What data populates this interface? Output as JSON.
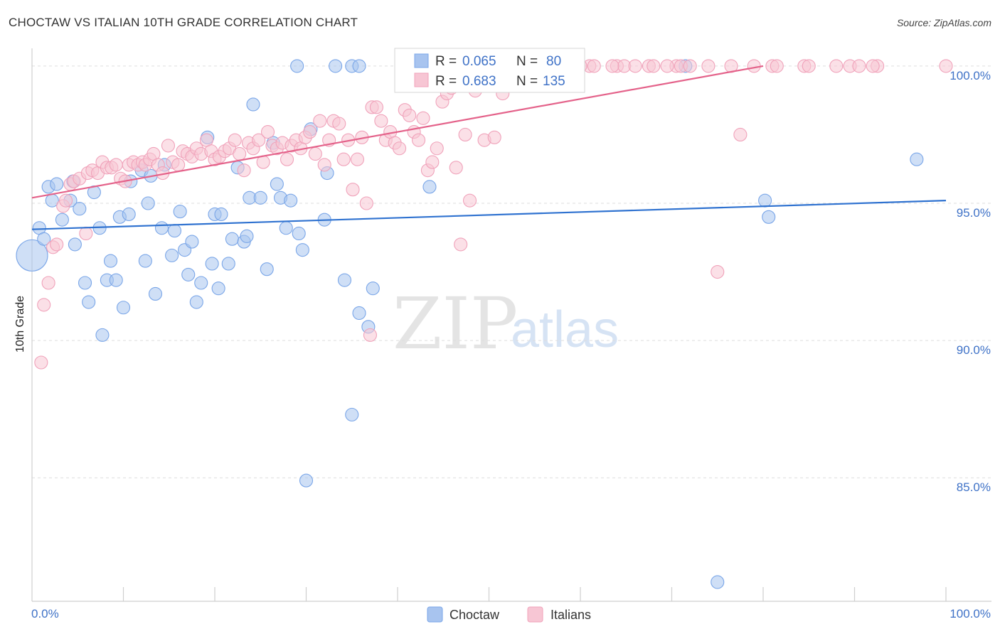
{
  "chart_data": {
    "type": "scatter",
    "title": "CHOCTAW VS ITALIAN 10TH GRADE CORRELATION CHART",
    "source": "Source: ZipAtlas.com",
    "xlabel": "",
    "ylabel": "10th Grade",
    "xlim": [
      0,
      100
    ],
    "ylim": [
      80.5,
      100.8
    ],
    "x_tick_labels": [
      "0.0%",
      "100.0%"
    ],
    "y_ticks": [
      85,
      90,
      95,
      100
    ],
    "y_tick_labels": [
      "85.0%",
      "90.0%",
      "95.0%",
      "100.0%"
    ],
    "watermark": [
      "ZIP",
      "atlas"
    ],
    "legend": {
      "r_label": "R =",
      "n_label": "N =",
      "entries": [
        {
          "name": "Choctaw",
          "r": "0.065",
          "n": "80"
        },
        {
          "name": "Italians",
          "r": "0.683",
          "n": "135"
        }
      ]
    },
    "series": [
      {
        "name": "Choctaw",
        "color": "#7aa6e8",
        "fill": "#a8c4ef",
        "line_color": "#2f72d0",
        "trend": [
          [
            0,
            94.05
          ],
          [
            100,
            95.1
          ]
        ],
        "points": [
          [
            0,
            93.1
          ],
          [
            0.8,
            94.1
          ],
          [
            1.3,
            93.7
          ],
          [
            1.8,
            95.6
          ],
          [
            2.2,
            95.1
          ],
          [
            2.7,
            95.7
          ],
          [
            3.3,
            94.4
          ],
          [
            4.2,
            95.1
          ],
          [
            4.5,
            95.8
          ],
          [
            4.7,
            93.5
          ],
          [
            5.2,
            94.8
          ],
          [
            5.8,
            92.1
          ],
          [
            6.2,
            91.4
          ],
          [
            6.8,
            95.4
          ],
          [
            7.4,
            94.1
          ],
          [
            7.7,
            90.2
          ],
          [
            8.2,
            92.2
          ],
          [
            8.6,
            92.9
          ],
          [
            9.2,
            92.2
          ],
          [
            9.6,
            94.5
          ],
          [
            10.0,
            91.2
          ],
          [
            10.6,
            94.6
          ],
          [
            10.8,
            95.8
          ],
          [
            12.0,
            96.2
          ],
          [
            12.4,
            92.9
          ],
          [
            12.7,
            95.0
          ],
          [
            13.0,
            96.0
          ],
          [
            13.5,
            91.7
          ],
          [
            14.2,
            94.1
          ],
          [
            14.5,
            96.4
          ],
          [
            15.3,
            93.1
          ],
          [
            15.6,
            94.0
          ],
          [
            16.2,
            94.7
          ],
          [
            16.7,
            93.3
          ],
          [
            17.1,
            92.4
          ],
          [
            17.5,
            93.6
          ],
          [
            18.0,
            91.4
          ],
          [
            18.5,
            92.1
          ],
          [
            19.2,
            97.4
          ],
          [
            19.7,
            92.8
          ],
          [
            20.0,
            94.6
          ],
          [
            20.4,
            91.9
          ],
          [
            20.7,
            94.6
          ],
          [
            21.5,
            92.8
          ],
          [
            21.9,
            93.7
          ],
          [
            22.5,
            96.3
          ],
          [
            23.2,
            93.6
          ],
          [
            23.5,
            93.8
          ],
          [
            23.8,
            95.2
          ],
          [
            24.2,
            98.6
          ],
          [
            25.0,
            95.2
          ],
          [
            25.7,
            92.6
          ],
          [
            26.4,
            97.2
          ],
          [
            26.8,
            95.7
          ],
          [
            27.2,
            95.2
          ],
          [
            27.8,
            94.1
          ],
          [
            28.3,
            95.1
          ],
          [
            29.2,
            93.9
          ],
          [
            29.6,
            93.3
          ],
          [
            30.0,
            84.9
          ],
          [
            30.5,
            97.7
          ],
          [
            32.0,
            94.4
          ],
          [
            32.3,
            96.1
          ],
          [
            34.2,
            92.2
          ],
          [
            35.0,
            87.3
          ],
          [
            35.8,
            91.0
          ],
          [
            36.8,
            90.5
          ],
          [
            37.3,
            91.9
          ],
          [
            29.0,
            100.0
          ],
          [
            33.2,
            100.0
          ],
          [
            35.0,
            100.0
          ],
          [
            35.8,
            100.0
          ],
          [
            43.5,
            95.6
          ],
          [
            43.5,
            100.0
          ],
          [
            46.2,
            100.0
          ],
          [
            71.5,
            100.0
          ],
          [
            75.0,
            81.2
          ],
          [
            80.2,
            95.1
          ],
          [
            80.6,
            94.5
          ],
          [
            96.8,
            96.6
          ]
        ]
      },
      {
        "name": "Italians",
        "color": "#f0a2ba",
        "fill": "#f7c6d4",
        "line_color": "#e4628a",
        "trend": [
          [
            0,
            95.2
          ],
          [
            80,
            100.0
          ]
        ],
        "points": [
          [
            1.0,
            89.2
          ],
          [
            1.3,
            91.3
          ],
          [
            1.8,
            92.1
          ],
          [
            2.3,
            93.4
          ],
          [
            2.7,
            93.5
          ],
          [
            3.4,
            94.9
          ],
          [
            3.7,
            95.1
          ],
          [
            4.2,
            95.7
          ],
          [
            4.6,
            95.8
          ],
          [
            5.2,
            95.9
          ],
          [
            5.9,
            93.9
          ],
          [
            6.1,
            96.1
          ],
          [
            6.6,
            96.2
          ],
          [
            7.2,
            96.1
          ],
          [
            7.7,
            96.5
          ],
          [
            8.2,
            96.3
          ],
          [
            8.7,
            96.3
          ],
          [
            9.2,
            96.4
          ],
          [
            9.7,
            95.9
          ],
          [
            10.2,
            95.8
          ],
          [
            10.6,
            96.4
          ],
          [
            11.1,
            96.5
          ],
          [
            11.6,
            96.4
          ],
          [
            12.1,
            96.5
          ],
          [
            12.4,
            96.4
          ],
          [
            12.9,
            96.6
          ],
          [
            13.3,
            96.8
          ],
          [
            13.8,
            96.4
          ],
          [
            14.3,
            96.1
          ],
          [
            14.9,
            97.1
          ],
          [
            15.4,
            96.5
          ],
          [
            16.0,
            96.4
          ],
          [
            16.5,
            96.9
          ],
          [
            17.0,
            96.8
          ],
          [
            17.5,
            96.7
          ],
          [
            18.0,
            97.0
          ],
          [
            18.5,
            96.8
          ],
          [
            19.1,
            97.3
          ],
          [
            19.6,
            96.9
          ],
          [
            20.0,
            96.6
          ],
          [
            20.5,
            96.7
          ],
          [
            21.1,
            96.9
          ],
          [
            21.6,
            97.0
          ],
          [
            22.2,
            97.3
          ],
          [
            22.7,
            96.8
          ],
          [
            23.2,
            96.2
          ],
          [
            23.7,
            97.2
          ],
          [
            24.2,
            97.0
          ],
          [
            24.8,
            97.3
          ],
          [
            25.3,
            96.5
          ],
          [
            25.8,
            97.6
          ],
          [
            26.3,
            97.1
          ],
          [
            26.8,
            97.0
          ],
          [
            27.4,
            97.2
          ],
          [
            27.9,
            96.6
          ],
          [
            28.4,
            97.1
          ],
          [
            28.9,
            97.3
          ],
          [
            29.4,
            97.0
          ],
          [
            29.9,
            97.4
          ],
          [
            30.4,
            97.6
          ],
          [
            31.0,
            96.8
          ],
          [
            31.5,
            98.0
          ],
          [
            32.0,
            96.4
          ],
          [
            32.5,
            97.3
          ],
          [
            33.0,
            98.0
          ],
          [
            33.6,
            97.9
          ],
          [
            34.1,
            96.6
          ],
          [
            34.6,
            97.3
          ],
          [
            35.1,
            95.5
          ],
          [
            35.6,
            96.6
          ],
          [
            36.1,
            97.4
          ],
          [
            36.6,
            95.0
          ],
          [
            37.2,
            98.5
          ],
          [
            37.7,
            98.5
          ],
          [
            38.2,
            98.0
          ],
          [
            38.7,
            97.3
          ],
          [
            39.2,
            97.6
          ],
          [
            39.7,
            97.2
          ],
          [
            40.2,
            97.0
          ],
          [
            40.8,
            98.4
          ],
          [
            41.3,
            98.2
          ],
          [
            41.8,
            97.6
          ],
          [
            42.3,
            97.3
          ],
          [
            42.8,
            98.1
          ],
          [
            43.3,
            96.2
          ],
          [
            43.8,
            96.5
          ],
          [
            44.3,
            97.0
          ],
          [
            44.9,
            98.7
          ],
          [
            45.4,
            99.0
          ],
          [
            45.9,
            99.2
          ],
          [
            46.4,
            96.3
          ],
          [
            46.9,
            93.5
          ],
          [
            47.4,
            97.5
          ],
          [
            47.9,
            95.1
          ],
          [
            48.5,
            99.1
          ],
          [
            49.5,
            97.3
          ],
          [
            50.6,
            97.4
          ],
          [
            51.5,
            99.0
          ],
          [
            52.5,
            100.0
          ],
          [
            53.5,
            100.0
          ],
          [
            54.6,
            100.0
          ],
          [
            55.5,
            100.0
          ],
          [
            57.0,
            100.0
          ],
          [
            58.0,
            100.0
          ],
          [
            61.0,
            100.0
          ],
          [
            61.5,
            100.0
          ],
          [
            64.0,
            100.0
          ],
          [
            64.8,
            100.0
          ],
          [
            67.5,
            100.0
          ],
          [
            68.0,
            100.0
          ],
          [
            70.5,
            100.0
          ],
          [
            71.0,
            100.0
          ],
          [
            72.0,
            100.0
          ],
          [
            75.0,
            92.5
          ],
          [
            76.5,
            100.0
          ],
          [
            77.5,
            97.5
          ],
          [
            79.0,
            100.0
          ],
          [
            81.0,
            100.0
          ],
          [
            81.5,
            100.0
          ],
          [
            84.5,
            100.0
          ],
          [
            88.0,
            100.0
          ],
          [
            89.5,
            100.0
          ],
          [
            90.5,
            100.0
          ],
          [
            92.5,
            100.0
          ],
          [
            100.0,
            100.0
          ],
          [
            60.0,
            100.0
          ],
          [
            63.5,
            100.0
          ],
          [
            37.0,
            90.2
          ],
          [
            48.0,
            100.0
          ],
          [
            50.0,
            100.0
          ],
          [
            66.0,
            100.0
          ],
          [
            69.5,
            100.0
          ],
          [
            74.0,
            100.0
          ],
          [
            85.0,
            100.0
          ],
          [
            92.0,
            100.0
          ]
        ]
      }
    ]
  }
}
